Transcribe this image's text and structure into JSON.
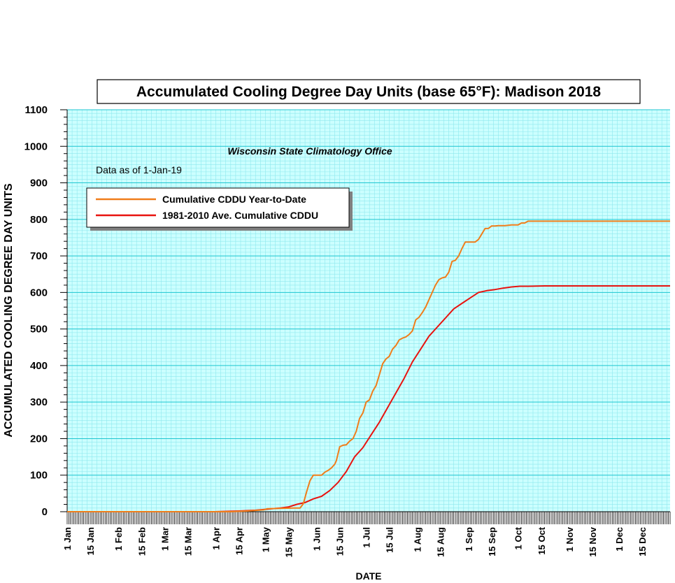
{
  "chart_data": {
    "type": "line",
    "title": "Accumulated Cooling Degree Day Units (base 65°F): Madison 2018",
    "subtitle": "Wisconsin State Climatology Office",
    "note": "Data as of 1-Jan-19",
    "xlabel": "DATE",
    "ylabel": "ACCUMULATED COOLING DEGREE DAY UNITS",
    "x_unit": "day of year",
    "xlim": [
      1,
      366
    ],
    "ylim": [
      0,
      1100
    ],
    "y_ticks": [
      0,
      100,
      200,
      300,
      400,
      500,
      600,
      700,
      800,
      900,
      1000,
      1100
    ],
    "x_ticks": [
      {
        "label": "1 Jan",
        "day": 1
      },
      {
        "label": "15 Jan",
        "day": 15
      },
      {
        "label": "1 Feb",
        "day": 32
      },
      {
        "label": "15 Feb",
        "day": 46
      },
      {
        "label": "1 Mar",
        "day": 60
      },
      {
        "label": "15 Mar",
        "day": 74
      },
      {
        "label": "1 Apr",
        "day": 91
      },
      {
        "label": "15 Apr",
        "day": 105
      },
      {
        "label": "1 May",
        "day": 121
      },
      {
        "label": "15 May",
        "day": 135
      },
      {
        "label": "1 Jun",
        "day": 152
      },
      {
        "label": "15 Jun",
        "day": 166
      },
      {
        "label": "1 Jul",
        "day": 182
      },
      {
        "label": "15 Jul",
        "day": 196
      },
      {
        "label": "1 Aug",
        "day": 213
      },
      {
        "label": "15 Aug",
        "day": 227
      },
      {
        "label": "1 Sep",
        "day": 244
      },
      {
        "label": "15 Sep",
        "day": 258
      },
      {
        "label": "1 Oct",
        "day": 274
      },
      {
        "label": "15 Oct",
        "day": 288
      },
      {
        "label": "1 Nov",
        "day": 305
      },
      {
        "label": "15 Nov",
        "day": 319
      },
      {
        "label": "1 Dec",
        "day": 335
      },
      {
        "label": "15 Dec",
        "day": 349
      }
    ],
    "grid": true,
    "legend_position": "top-left",
    "series": [
      {
        "name": "Cumulative CDDU Year-to-Date",
        "color": "#f07d1a",
        "x": [
          1,
          100,
          110,
          120,
          122,
          130,
          138,
          142,
          144,
          146,
          148,
          150,
          152,
          155,
          157,
          159,
          161,
          163,
          164,
          166,
          168,
          170,
          172,
          174,
          176,
          178,
          180,
          182,
          184,
          186,
          188,
          190,
          192,
          194,
          196,
          198,
          200,
          202,
          204,
          206,
          208,
          210,
          212,
          214,
          216,
          218,
          220,
          222,
          224,
          226,
          228,
          230,
          232,
          234,
          236,
          238,
          240,
          242,
          244,
          246,
          248,
          250,
          252,
          254,
          256,
          258,
          260,
          262,
          264,
          266,
          270,
          274,
          276,
          278,
          280,
          282,
          366
        ],
        "values": [
          0,
          0,
          2,
          5,
          8,
          9,
          10,
          10,
          22,
          55,
          85,
          100,
          100,
          100,
          108,
          113,
          120,
          130,
          140,
          178,
          182,
          183,
          193,
          200,
          220,
          255,
          270,
          300,
          306,
          330,
          345,
          375,
          405,
          418,
          425,
          445,
          455,
          470,
          475,
          478,
          485,
          495,
          525,
          532,
          545,
          560,
          580,
          600,
          620,
          635,
          640,
          642,
          655,
          685,
          688,
          700,
          720,
          738,
          738,
          738,
          738,
          745,
          760,
          775,
          775,
          782,
          782,
          783,
          783,
          783,
          785,
          785,
          790,
          790,
          795,
          795,
          795
        ]
      },
      {
        "name": "1981-2010 Ave. Cumulative CDDU",
        "color": "#e8130f",
        "x": [
          1,
          90,
          105,
          115,
          120,
          125,
          130,
          135,
          140,
          145,
          150,
          155,
          160,
          165,
          170,
          175,
          180,
          185,
          190,
          195,
          200,
          205,
          210,
          215,
          220,
          225,
          230,
          235,
          240,
          245,
          250,
          255,
          260,
          265,
          270,
          275,
          280,
          290,
          366
        ],
        "values": [
          0,
          0,
          2,
          4,
          6,
          8,
          10,
          13,
          20,
          25,
          35,
          42,
          58,
          80,
          110,
          150,
          175,
          210,
          245,
          285,
          325,
          365,
          410,
          445,
          480,
          505,
          530,
          555,
          570,
          585,
          600,
          605,
          608,
          612,
          615,
          617,
          617,
          618,
          618
        ]
      }
    ]
  }
}
